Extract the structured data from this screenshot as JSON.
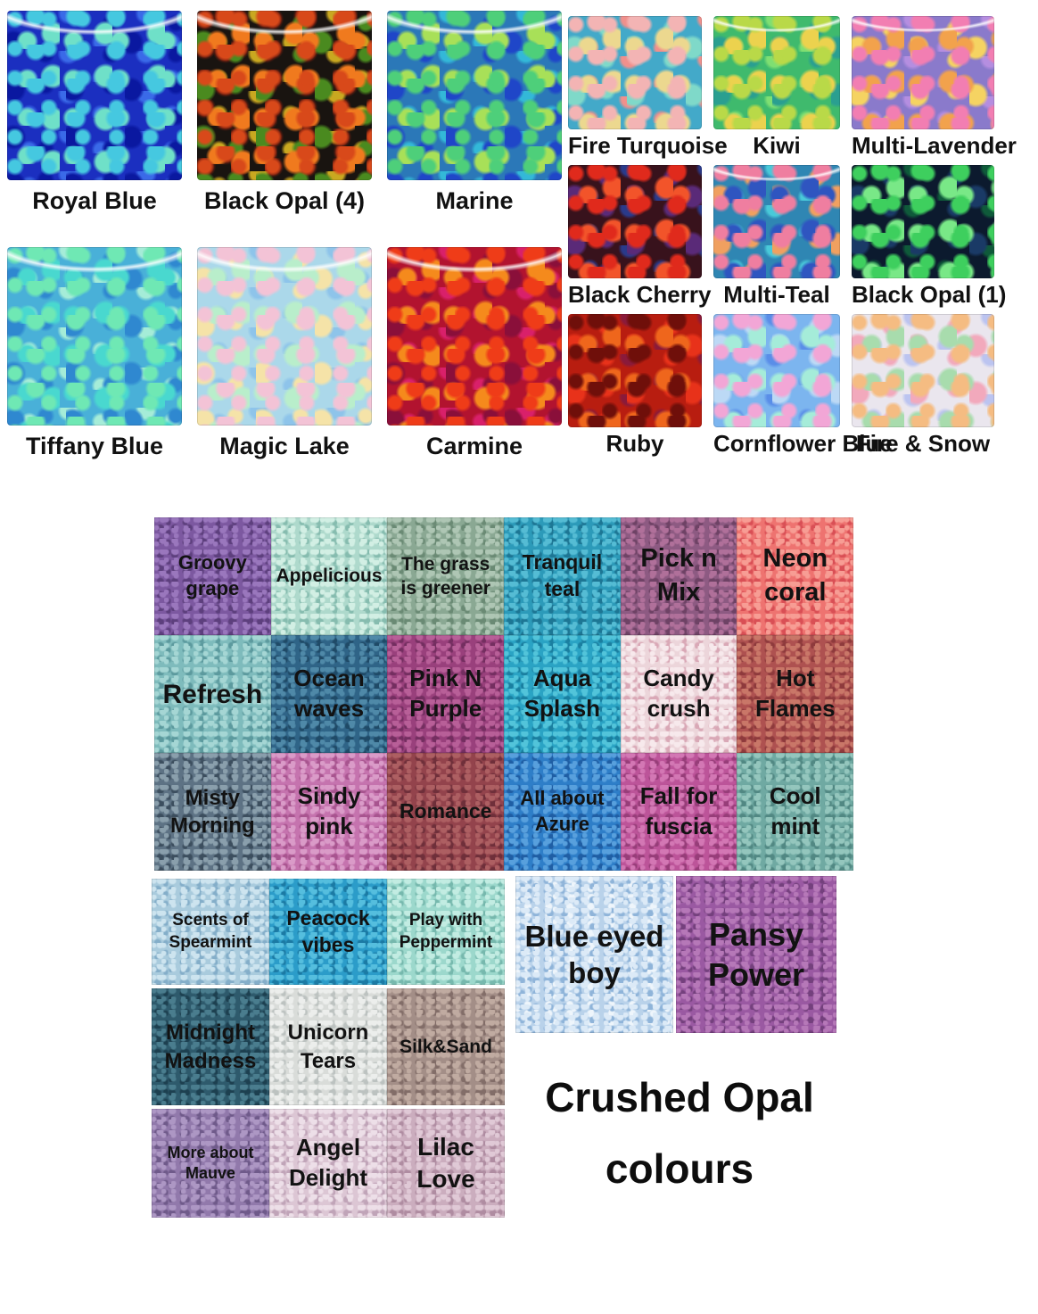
{
  "page": {
    "background": "#ffffff"
  },
  "title": {
    "line1": "Crushed Opal",
    "line2": "colours"
  },
  "top_left": [
    {
      "label": "Royal Blue",
      "base": "#1b2fc0",
      "flecks": [
        "#45c8e0",
        "#6fe0c8",
        "#0a18a0",
        "#3a6ae8"
      ]
    },
    {
      "label": "Black Opal (4)",
      "base": "#191410",
      "flecks": [
        "#d8491a",
        "#f07a1e",
        "#4a8a1f",
        "#c9a820",
        "#7a1f10"
      ]
    },
    {
      "label": "Marine",
      "base": "#2b78b8",
      "flecks": [
        "#4ecf7a",
        "#a8e058",
        "#1f46c8",
        "#33b8d8"
      ]
    },
    {
      "label": "Tiffany Blue",
      "base": "#49b0d8",
      "flecks": [
        "#6fe8b4",
        "#49d8cf",
        "#2f88d0",
        "#a5ecd8"
      ]
    },
    {
      "label": "Magic Lake",
      "base": "#abd8ea",
      "flecks": [
        "#f3c3d6",
        "#b9eecb",
        "#f5e3a8",
        "#8ec4ea"
      ]
    },
    {
      "label": "Carmine",
      "base": "#b2132f",
      "flecks": [
        "#ef3c18",
        "#f58a1c",
        "#8a0f3a",
        "#d9206a"
      ]
    }
  ],
  "top_right": [
    {
      "label": "Fire Turquoise",
      "base": "#43a9c9",
      "flecks": [
        "#f3b4b4",
        "#ecd88f",
        "#7fd9c9",
        "#f0908c"
      ]
    },
    {
      "label": "Kiwi",
      "base": "#3fba6d",
      "flecks": [
        "#b9d948",
        "#ecd24e",
        "#2a9f90",
        "#7fdf72"
      ]
    },
    {
      "label": "Multi-Lavender",
      "base": "#8a7acb",
      "flecks": [
        "#f27eb2",
        "#f2a24c",
        "#f5d362",
        "#b58ee0"
      ]
    },
    {
      "label": "Black Cherry",
      "base": "#38121c",
      "flecks": [
        "#e02a1c",
        "#f2542a",
        "#5a2a78",
        "#2a3a8a"
      ]
    },
    {
      "label": "Multi-Teal",
      "base": "#2f86b3",
      "flecks": [
        "#ef7ea0",
        "#2f55c0",
        "#f0a060",
        "#49c9d9"
      ]
    },
    {
      "label": "Black Opal (1)",
      "base": "#0c1a2e",
      "flecks": [
        "#3ecf5e",
        "#79e887",
        "#1a3a66",
        "#0f5a3a"
      ]
    },
    {
      "label": "Ruby",
      "base": "#b81d10",
      "flecks": [
        "#6f0f0a",
        "#ef661c",
        "#e8321a",
        "#8a1a3a"
      ]
    },
    {
      "label": "Cornflower Blue",
      "base": "#7cb5ef",
      "flecks": [
        "#f2a6d6",
        "#a5ecd9",
        "#bcd9f5",
        "#5a8ee8"
      ]
    },
    {
      "label": "Fire & Snow",
      "base": "#eae6ee",
      "flecks": [
        "#f5bc82",
        "#a8dcad",
        "#f2a9bc",
        "#bcc4f0"
      ]
    }
  ],
  "bottom_grid": [
    {
      "label": "Groovy grape",
      "base": "#7c58a0",
      "flecks": [
        "#9a77bd",
        "#5d3f7d"
      ]
    },
    {
      "label": "Appelicious",
      "base": "#aed9cc",
      "flecks": [
        "#d2efe4",
        "#86bcaf"
      ]
    },
    {
      "label": "The  grass is greener",
      "base": "#8aa893",
      "flecks": [
        "#aec6b4",
        "#6a8a74"
      ]
    },
    {
      "label": "Tranquil teal",
      "base": "#2c9ab9",
      "flecks": [
        "#55bcd4",
        "#1d7694"
      ]
    },
    {
      "label": "Pick n Mix",
      "base": "#8d5a82",
      "flecks": [
        "#b0709a",
        "#6e4265"
      ]
    },
    {
      "label": "Neon coral",
      "base": "#ee7370",
      "flecks": [
        "#f79d94",
        "#d94f55"
      ]
    },
    {
      "label": "Refresh",
      "base": "#7ebbbc",
      "flecks": [
        "#a5d6d4",
        "#5c9a9e"
      ]
    },
    {
      "label": "Ocean waves",
      "base": "#2f6487",
      "flecks": [
        "#4f89a8",
        "#1f4a67"
      ]
    },
    {
      "label": "Pink N Purple",
      "base": "#99407c",
      "flecks": [
        "#b85f98",
        "#742e60"
      ]
    },
    {
      "label": "Aqua Splash",
      "base": "#2aa3c4",
      "flecks": [
        "#52c4da",
        "#1a7fa0"
      ]
    },
    {
      "label": "Candy crush",
      "base": "#ecd5da",
      "flecks": [
        "#f7e9ec",
        "#d9a8b6"
      ]
    },
    {
      "label": "Hot Flames",
      "base": "#ae5150",
      "flecks": [
        "#c97768",
        "#8e3a3c"
      ]
    },
    {
      "label": "Misty Morning",
      "base": "#5d7284",
      "flecks": [
        "#8a9fac",
        "#3c4e5e"
      ]
    },
    {
      "label": "Sindy pink",
      "base": "#c573ae",
      "flecks": [
        "#da9bc8",
        "#a8548f"
      ]
    },
    {
      "label": "Romance",
      "base": "#93434c",
      "flecks": [
        "#ad5f62",
        "#6f2f3a"
      ]
    },
    {
      "label": "All about Azure",
      "base": "#2e7ec8",
      "flecks": [
        "#58a0dd",
        "#1f5ea4"
      ]
    },
    {
      "label": "Fall for fuscia",
      "base": "#bc5499",
      "flecks": [
        "#d377b4",
        "#973d79"
      ]
    },
    {
      "label": "Cool mint",
      "base": "#6fa9a2",
      "flecks": [
        "#94c6bd",
        "#518883"
      ]
    }
  ],
  "bottom_lower": [
    {
      "label": "Scents of Spearmint",
      "base": "#a9cbdd",
      "flecks": [
        "#cde4ef",
        "#84aec9"
      ]
    },
    {
      "label": "Peacock vibes",
      "base": "#2b9cc9",
      "flecks": [
        "#55bede",
        "#1b7aa4"
      ]
    },
    {
      "label": "Play with Peppermint",
      "base": "#9cd8cc",
      "flecks": [
        "#c2ece2",
        "#76b8ad"
      ]
    },
    {
      "label": "Midnight Madness",
      "base": "#2e5a6c",
      "flecks": [
        "#4a7d8e",
        "#1d4050"
      ]
    },
    {
      "label": "Unicorn Tears",
      "base": "#d9dcd9",
      "flecks": [
        "#eceeec",
        "#bcc2c0"
      ]
    },
    {
      "label": "Silk&Sand",
      "base": "#a38e87",
      "flecks": [
        "#c0aba1",
        "#826d68"
      ]
    },
    {
      "label": "More about Mauve",
      "base": "#9179ab",
      "flecks": [
        "#ad97c4",
        "#6f5a8a"
      ]
    },
    {
      "label": "Angel Delight",
      "base": "#dcc6d4",
      "flecks": [
        "#eddfe8",
        "#c0a4b8"
      ]
    },
    {
      "label": "Lilac Love",
      "base": "#cbadbe",
      "flecks": [
        "#e0c9d6",
        "#af8ca1"
      ]
    }
  ],
  "featured": [
    {
      "label": "Blue eyed boy",
      "base": "#b9d2ea",
      "flecks": [
        "#dceaf7",
        "#8fb4d9",
        "#eef5fb"
      ]
    },
    {
      "label": "Pansy Power",
      "base": "#9a59a2",
      "flecks": [
        "#b678b8",
        "#74407d"
      ]
    }
  ]
}
